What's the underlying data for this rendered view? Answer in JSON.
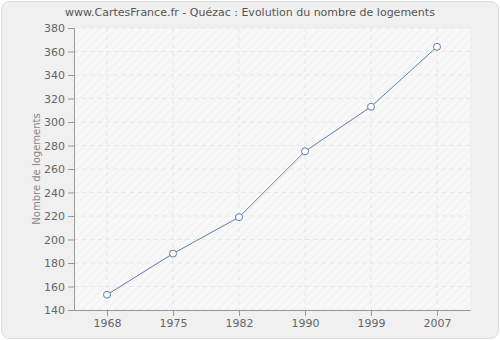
{
  "chart_data": {
    "type": "line",
    "title": "www.CartesFrance.fr - Quézac : Evolution du nombre de logements",
    "y_label": "Nombre de logements",
    "categories": [
      "1968",
      "1975",
      "1982",
      "1990",
      "1999",
      "2007"
    ],
    "values": [
      153,
      188,
      219,
      275,
      313,
      364
    ],
    "color": "#5b80a8",
    "marker": "circle",
    "ylim": [
      140,
      380
    ],
    "yticks": [
      140,
      160,
      180,
      200,
      220,
      240,
      260,
      280,
      300,
      320,
      340,
      360,
      380
    ],
    "grid": true
  }
}
